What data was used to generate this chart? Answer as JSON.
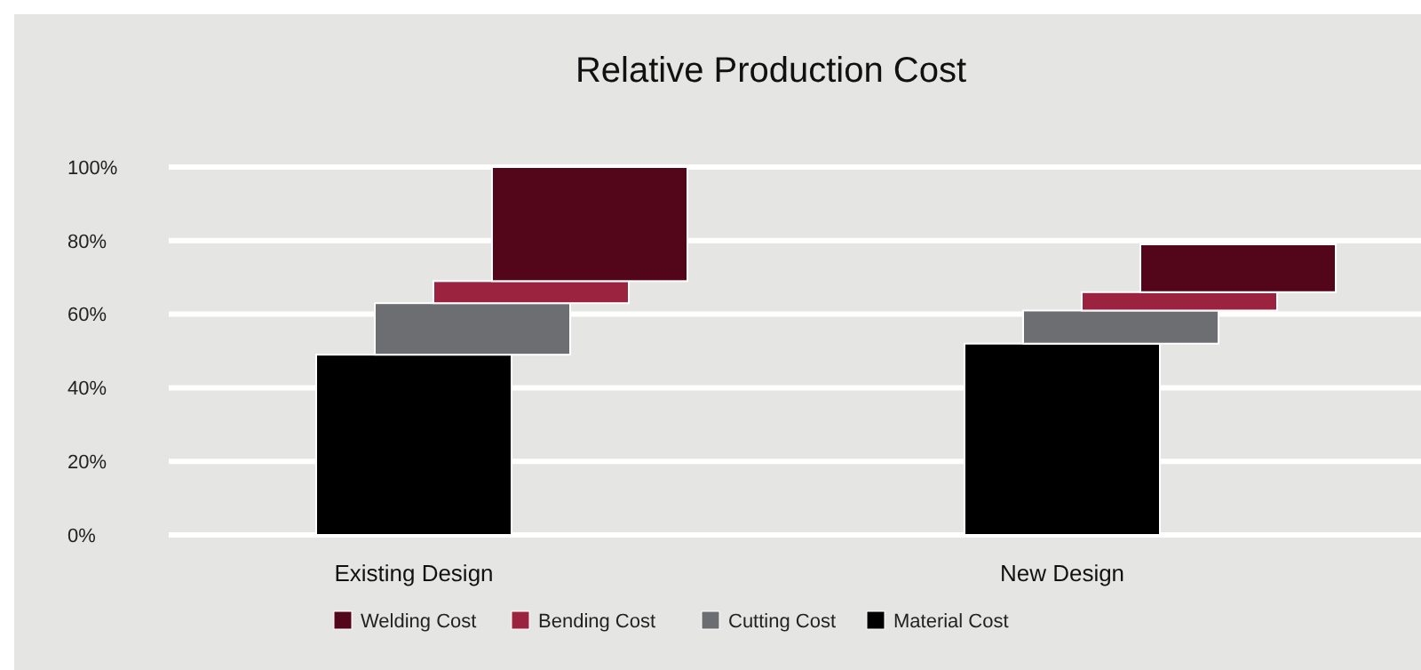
{
  "chart_data": {
    "type": "bar",
    "title": "Relative Production Cost",
    "categories": [
      "Existing Design",
      "New Design"
    ],
    "stacked": true,
    "series": [
      {
        "name": "Material Cost",
        "color": "#000000",
        "values": [
          49,
          52
        ]
      },
      {
        "name": "Cutting Cost",
        "color": "#6d6e72",
        "values": [
          14,
          9
        ]
      },
      {
        "name": "Bending Cost",
        "color": "#9b2340",
        "values": [
          6,
          5
        ]
      },
      {
        "name": "Welding Cost",
        "color": "#53051a",
        "values": [
          31,
          13
        ]
      }
    ],
    "ylim": [
      0,
      100
    ],
    "yticks": [
      {
        "value": 0,
        "label": "0%"
      },
      {
        "value": 20,
        "label": "20%"
      },
      {
        "value": 40,
        "label": "40%"
      },
      {
        "value": 60,
        "label": "60%"
      },
      {
        "value": 80,
        "label": "80%"
      },
      {
        "value": 100,
        "label": "100%"
      }
    ],
    "grid": "y",
    "legend": "bottom"
  }
}
